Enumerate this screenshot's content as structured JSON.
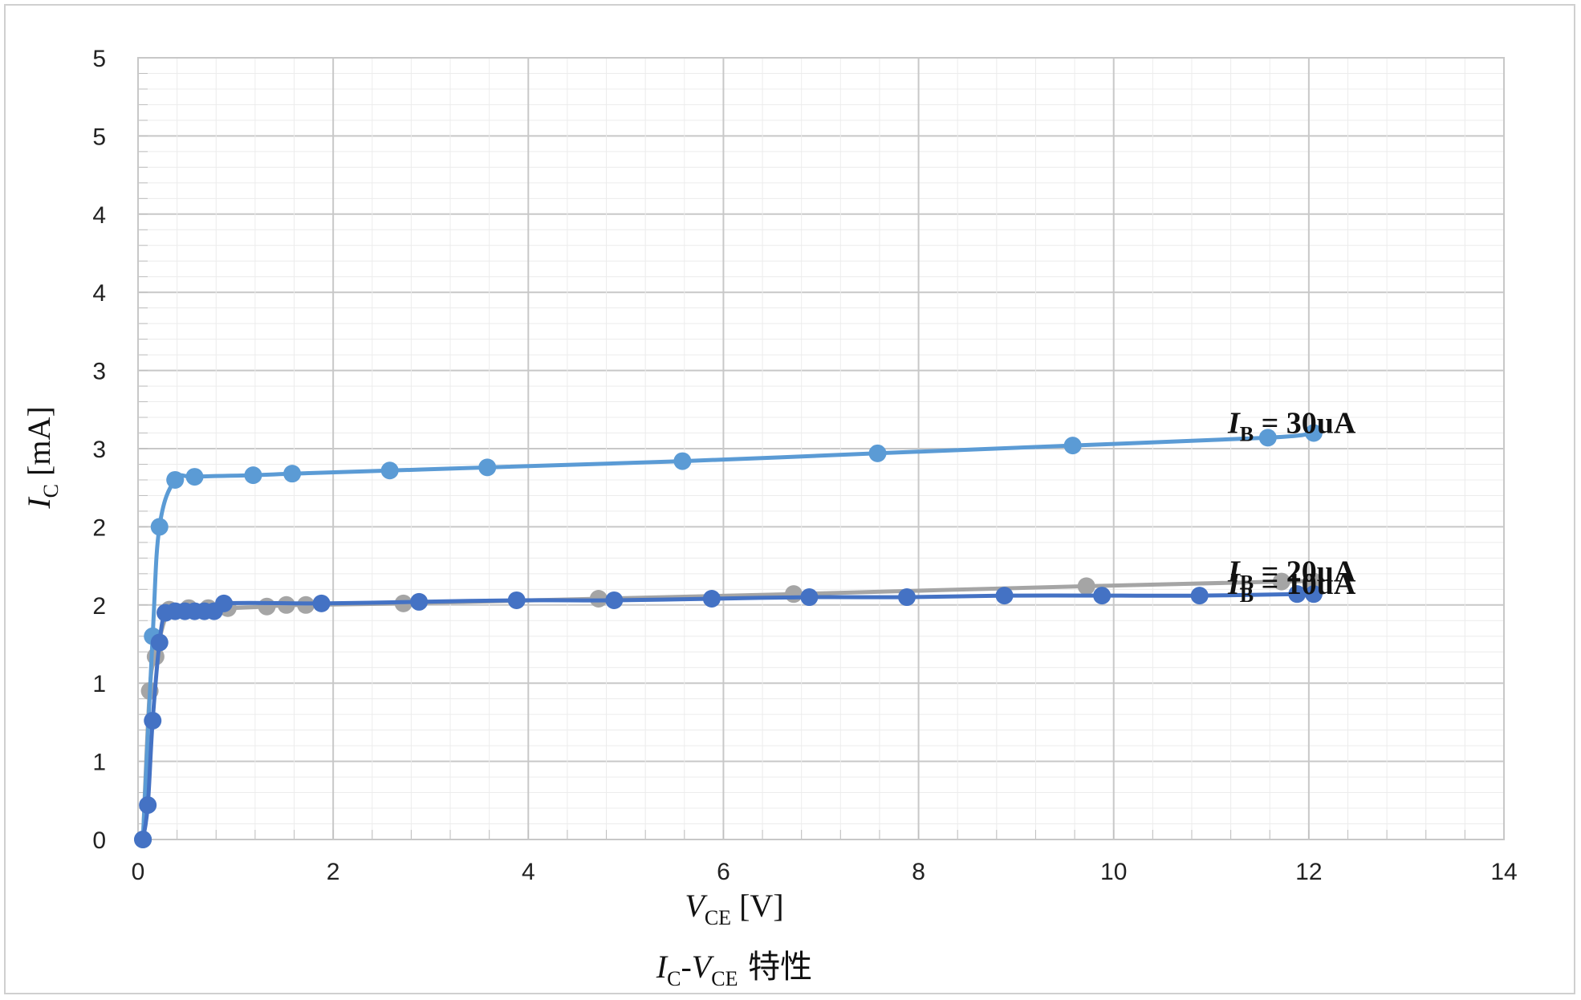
{
  "chart_data": {
    "type": "scatter",
    "title": {
      "I": "I",
      "sub1": "C",
      "dash": "-",
      "V": "V",
      "sub2": "CE",
      "rest": " 特性"
    },
    "xlabel": {
      "V": "V",
      "sub": "CE",
      "unit": " [V]"
    },
    "ylabel": {
      "I": "I",
      "sub": "C",
      "unit": " [mA]"
    },
    "xlim": [
      0,
      14
    ],
    "ylim": [
      0,
      5
    ],
    "x_ticks": [
      "0",
      "2",
      "4",
      "6",
      "8",
      "10",
      "12",
      "14"
    ],
    "y_ticks": [
      "0",
      "1",
      "1",
      "2",
      "2",
      "3",
      "3",
      "4",
      "4",
      "5",
      "5"
    ],
    "grid": true,
    "series": [
      {
        "name": "30uA",
        "label": {
          "I": "I",
          "sub": "B",
          "val": " = 30uA"
        },
        "color": "#5b9bd5",
        "x": [
          0.05,
          0.15,
          0.22,
          0.38,
          0.58,
          1.18,
          1.58,
          2.58,
          3.58,
          5.58,
          7.58,
          9.58,
          11.58,
          12.05
        ],
        "y": [
          0.0,
          1.3,
          2.0,
          2.3,
          2.32,
          2.33,
          2.34,
          2.36,
          2.38,
          2.42,
          2.47,
          2.52,
          2.57,
          2.6
        ]
      },
      {
        "name": "20uA",
        "label": {
          "I": "I",
          "sub": "B",
          "val": " = 20uA"
        },
        "color": "#a5a5a5",
        "x": [
          0.05,
          0.12,
          0.18,
          0.32,
          0.52,
          0.72,
          0.92,
          1.32,
          1.52,
          1.72,
          2.72,
          4.72,
          6.72,
          9.72,
          11.72,
          12.05
        ],
        "y": [
          0.0,
          0.95,
          1.17,
          1.47,
          1.48,
          1.48,
          1.48,
          1.49,
          1.5,
          1.5,
          1.51,
          1.54,
          1.57,
          1.62,
          1.65,
          1.65
        ]
      },
      {
        "name": "10uA",
        "label": {
          "I": "I",
          "sub": "B",
          "val": " = 10uA"
        },
        "color": "#4472c4",
        "x": [
          0.05,
          0.1,
          0.15,
          0.22,
          0.28,
          0.38,
          0.48,
          0.58,
          0.68,
          0.78,
          0.88,
          1.88,
          2.88,
          3.88,
          4.88,
          5.88,
          6.88,
          7.88,
          8.88,
          9.88,
          10.88,
          11.88,
          12.05
        ],
        "y": [
          0.0,
          0.22,
          0.76,
          1.26,
          1.45,
          1.46,
          1.46,
          1.46,
          1.46,
          1.46,
          1.51,
          1.51,
          1.52,
          1.53,
          1.53,
          1.54,
          1.55,
          1.55,
          1.56,
          1.56,
          1.56,
          1.57,
          1.57
        ]
      }
    ]
  }
}
